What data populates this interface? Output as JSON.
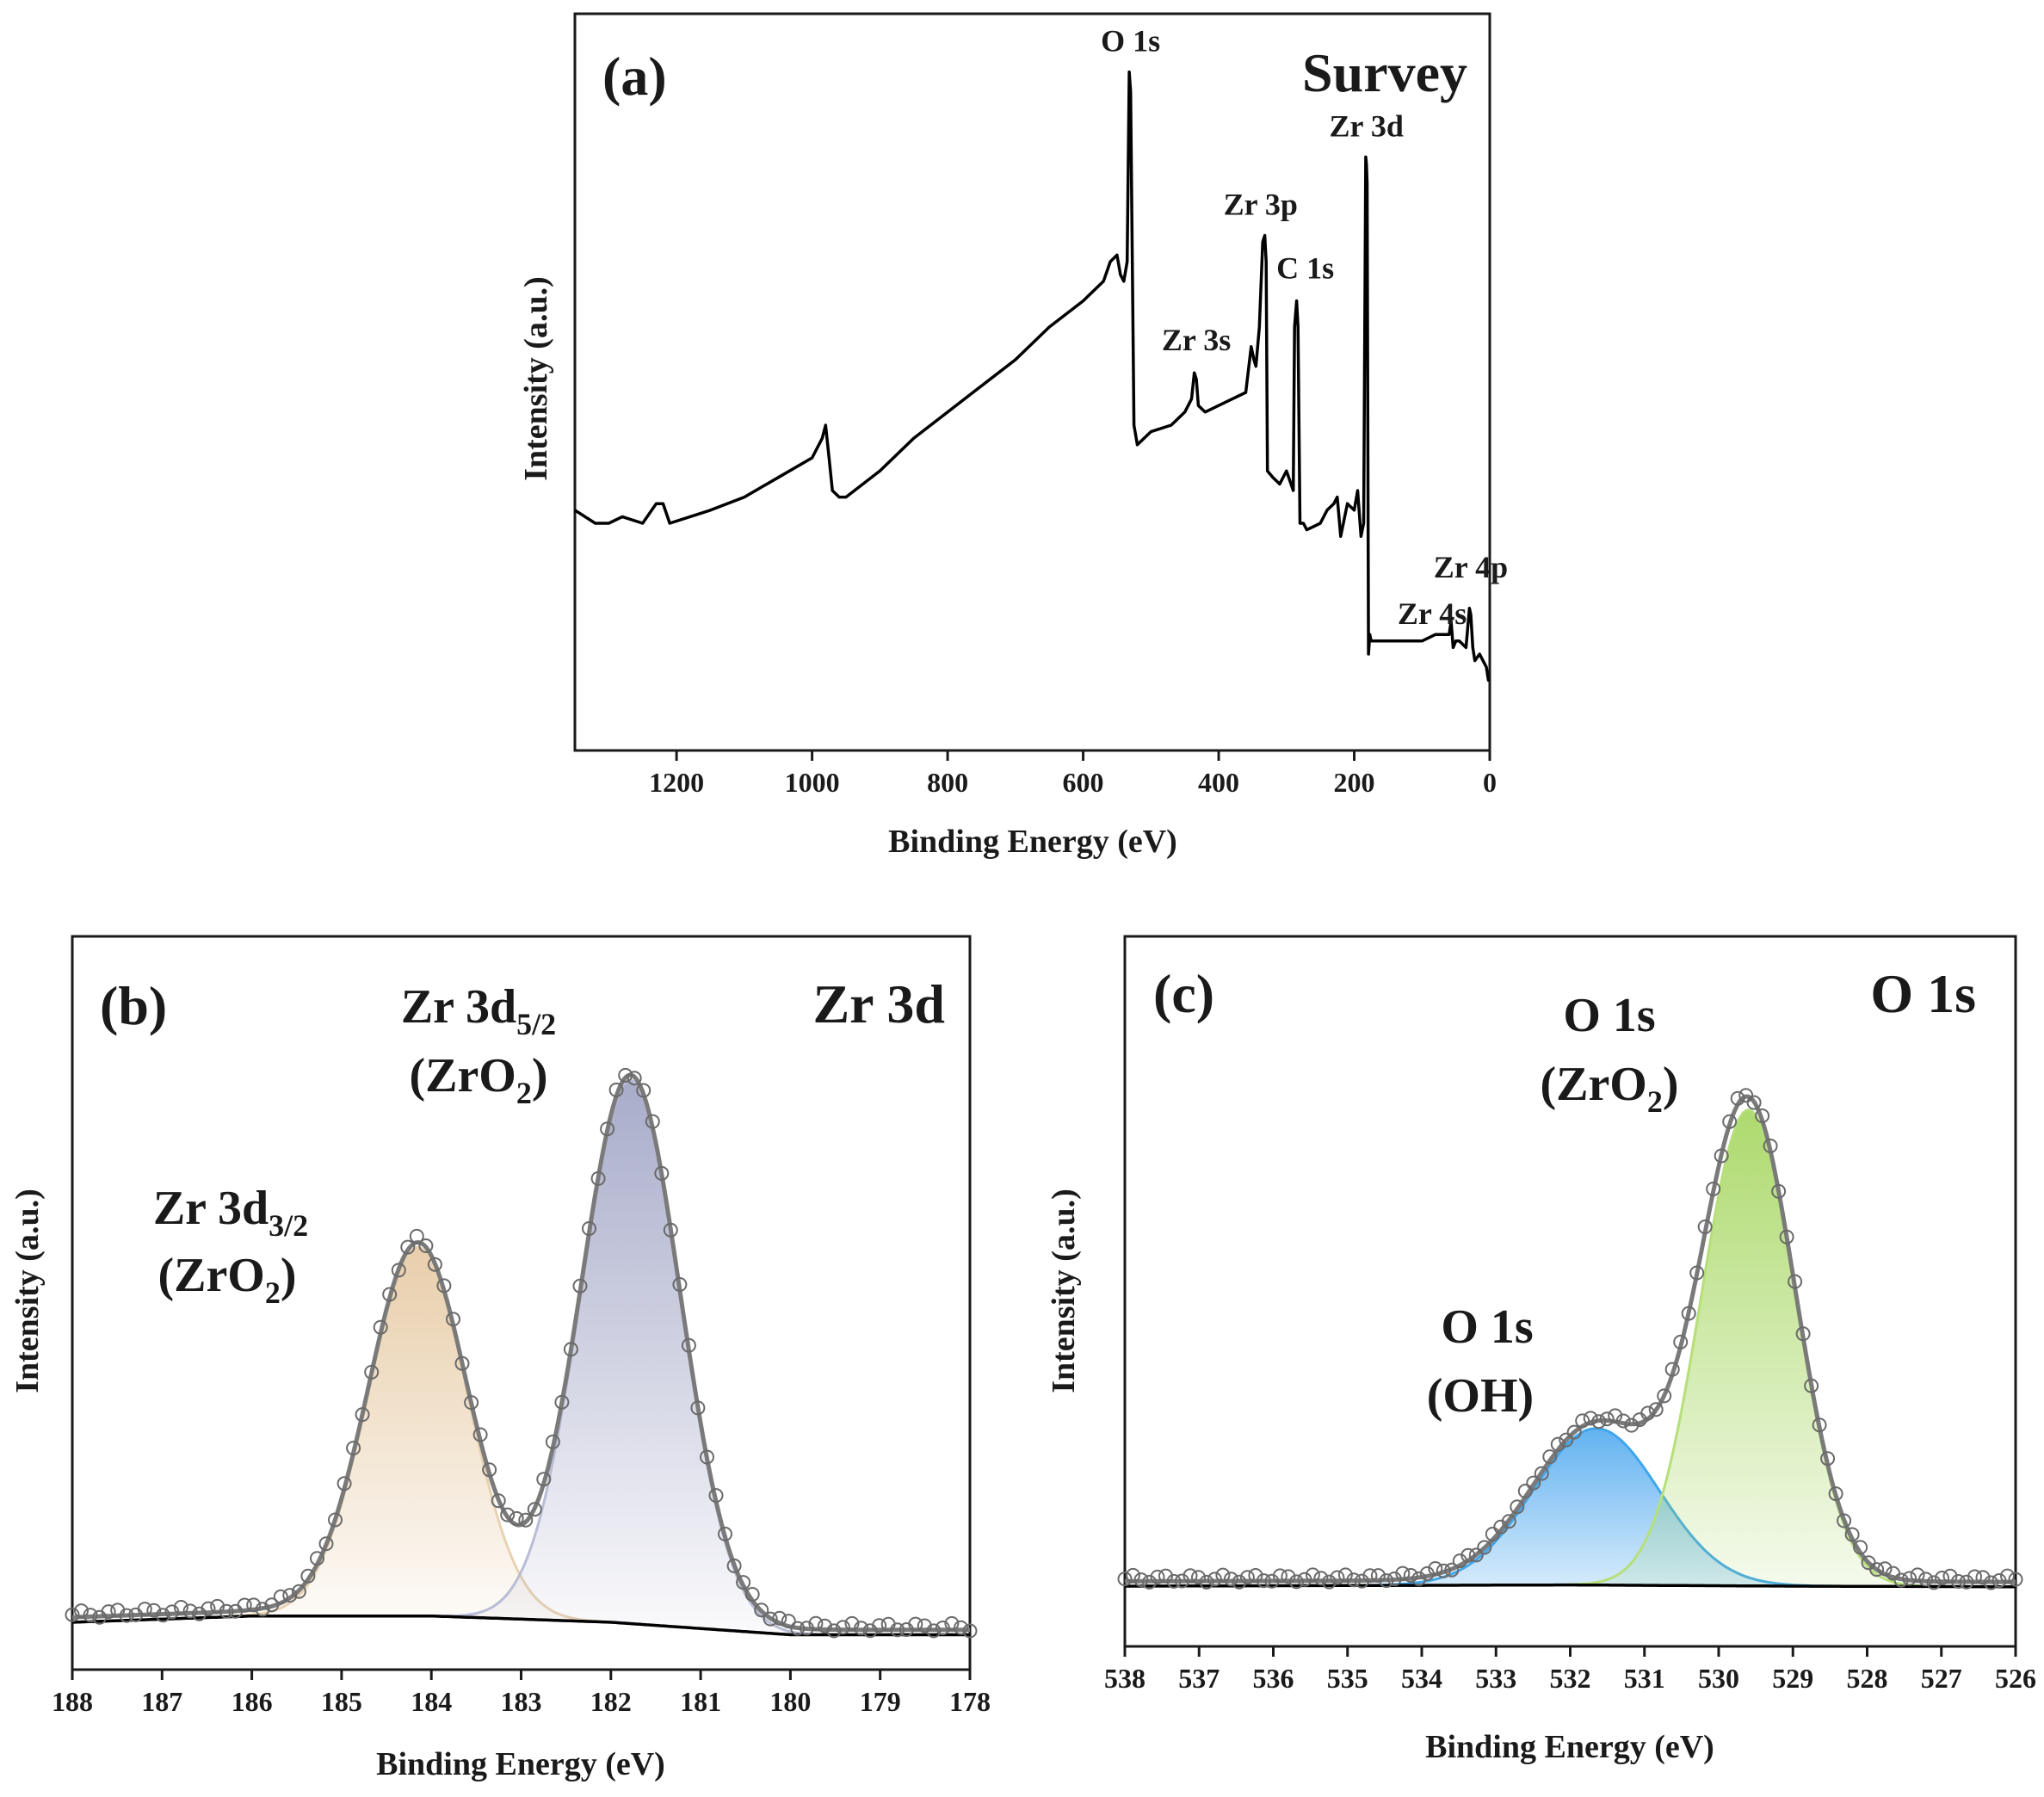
{
  "chart_data": [
    {
      "panel": "a",
      "type": "line",
      "panel_label": "(a)",
      "title": "Survey",
      "xlabel": "Binding Energy (eV)",
      "ylabel": "Intensity (a.u.)",
      "xlim": [
        1350,
        0
      ],
      "ylim": [
        0,
        100
      ],
      "xticks": [
        1200,
        1000,
        800,
        600,
        400,
        200,
        0
      ],
      "series": [
        {
          "name": "Survey spectrum",
          "x": [
            1350,
            1320,
            1300,
            1280,
            1250,
            1230,
            1220,
            1210,
            1150,
            1100,
            1050,
            1000,
            985,
            980,
            975,
            970,
            960,
            950,
            900,
            850,
            800,
            750,
            700,
            650,
            600,
            570,
            560,
            550,
            545,
            540,
            535,
            532,
            530,
            525,
            520,
            500,
            470,
            450,
            440,
            436,
            433,
            430,
            420,
            400,
            380,
            360,
            352,
            348,
            345,
            340,
            335,
            332,
            330,
            328,
            320,
            310,
            300,
            290,
            288,
            285,
            283,
            280,
            275,
            270,
            250,
            240,
            230,
            225,
            220,
            210,
            200,
            195,
            190,
            186,
            183,
            182,
            181,
            179,
            177,
            175,
            170,
            150,
            120,
            100,
            80,
            60,
            57,
            54,
            50,
            45,
            35,
            30,
            28,
            25,
            22,
            15,
            10,
            5,
            2,
            0
          ],
          "y": [
            32,
            30,
            30,
            31,
            30,
            33,
            33,
            30,
            32,
            34,
            37,
            40,
            43,
            45,
            40,
            35,
            34,
            34,
            38,
            43,
            47,
            51,
            55,
            60,
            64,
            67,
            70,
            71,
            68,
            67,
            70,
            99,
            96,
            45,
            42,
            44,
            45,
            47,
            49,
            53,
            52,
            48,
            47,
            48,
            49,
            50,
            57,
            55,
            54,
            60,
            73,
            74,
            70,
            38,
            37,
            36,
            38,
            35,
            60,
            64,
            60,
            30,
            30,
            29,
            30,
            32,
            33,
            34,
            28,
            33,
            32,
            35,
            28,
            30,
            86,
            85,
            82,
            10,
            13,
            12,
            12,
            12,
            12,
            12,
            13,
            13,
            15,
            11,
            12,
            12,
            11,
            17,
            16,
            11,
            9,
            10,
            9,
            8,
            6,
            6
          ]
        }
      ],
      "annotations": [
        {
          "text": "O 1s",
          "x": 530,
          "y": 99
        },
        {
          "text": "Zr 3d",
          "x": 182,
          "y": 86
        },
        {
          "text": "Zr 3p",
          "x": 333,
          "y": 74
        },
        {
          "text": "Zr 3s",
          "x": 433,
          "y": 53
        },
        {
          "text": "C 1s",
          "x": 285,
          "y": 64
        },
        {
          "text": "Zr 4p",
          "x": 28,
          "y": 17
        },
        {
          "text": "Zr 4s",
          "x": 52,
          "y": 12
        }
      ]
    },
    {
      "panel": "b",
      "type": "scatter",
      "panel_label": "(b)",
      "title": "Zr 3d",
      "xlabel": "Binding Energy (eV)",
      "ylabel": "Intensity (a.u.)",
      "xlim": [
        188,
        178
      ],
      "ylim": [
        0,
        100
      ],
      "xticks": [
        188,
        187,
        186,
        185,
        184,
        183,
        182,
        181,
        180,
        179,
        178
      ],
      "background": {
        "x": [
          188,
          186,
          184,
          182,
          180,
          178
        ],
        "y": [
          4,
          5,
          5,
          4,
          2,
          2
        ]
      },
      "components": [
        {
          "name": "Zr 3d3/2 (ZrO2)",
          "center": 184.15,
          "height": 59,
          "fwhm": 1.3,
          "color": "#e6c9a2"
        },
        {
          "name": "Zr 3d5/2 (ZrO2)",
          "center": 181.78,
          "height": 87,
          "fwhm": 1.3,
          "color": "#9fa3c4"
        }
      ],
      "data_points_x_range": [
        188,
        178
      ],
      "data_points_count": 100,
      "labels": [
        {
          "main": "Zr 3d",
          "sub": "3/2",
          "line2a": "(ZrO",
          "line2sub": "2",
          "line2b": ")"
        },
        {
          "main": "Zr 3d",
          "sub": "5/2",
          "line2a": "(ZrO",
          "line2sub": "2",
          "line2b": ")"
        }
      ]
    },
    {
      "panel": "c",
      "type": "scatter",
      "panel_label": "(c)",
      "title": "O 1s",
      "xlabel": "Binding Energy (eV)",
      "ylabel": "Intensity (a.u.)",
      "xlim": [
        538,
        526
      ],
      "ylim": [
        0,
        100
      ],
      "xticks": [
        538,
        537,
        536,
        535,
        534,
        533,
        532,
        531,
        530,
        529,
        528,
        527,
        526
      ],
      "background": {
        "x": [
          538,
          535,
          532,
          529,
          526
        ],
        "y": [
          5.0,
          5.1,
          5.2,
          5.0,
          4.9
        ]
      },
      "components": [
        {
          "name": "O 1s (OH)",
          "center": 531.65,
          "height": 26,
          "fwhm": 2.0,
          "color": "#5aaef0"
        },
        {
          "name": "O 1s (ZrO2)",
          "center": 529.6,
          "height": 79,
          "fwhm": 1.5,
          "color": "#a9d866"
        }
      ],
      "data_points_x_range": [
        538,
        526
      ],
      "data_points_count": 110,
      "labels": [
        {
          "line1": "O 1s",
          "line2": "(OH)"
        },
        {
          "line1": "O 1s",
          "line2a": "(ZrO",
          "line2sub": "2",
          "line2b": ")"
        }
      ]
    }
  ]
}
